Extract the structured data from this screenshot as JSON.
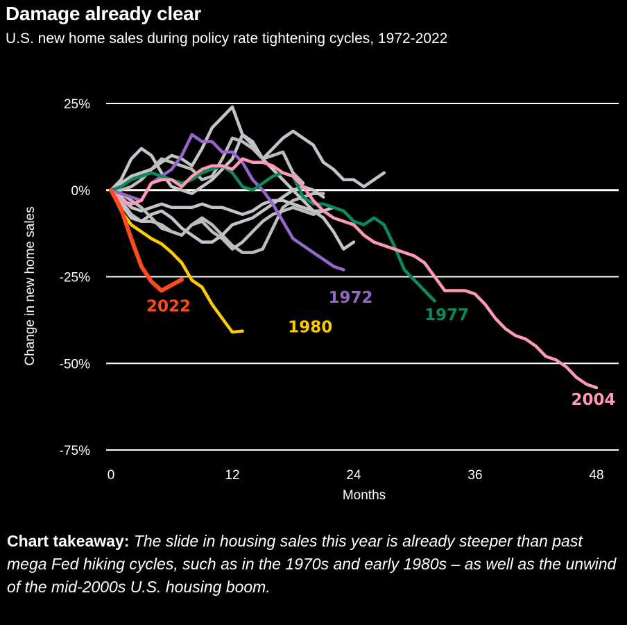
{
  "header": {
    "title": "Damage already clear",
    "subtitle": "U.S. new home sales during policy rate tightening cycles, 1972-2022"
  },
  "takeaway": {
    "label": "Chart takeaway:",
    "text": "The slide in housing sales this year is already steeper than past mega Fed hiking cycles, such as in the 1970s and early 1980s – as well as the unwind of the mid-2000s U.S. housing boom."
  },
  "chart_data": {
    "type": "line",
    "title": "Damage already clear",
    "subtitle": "U.S. new home sales during policy rate tightening cycles, 1972-2022",
    "xlabel": "Months",
    "ylabel": "Change in new home sales",
    "xlim": [
      0,
      48
    ],
    "ylim": [
      -75,
      25
    ],
    "xticks": [
      0,
      12,
      24,
      36,
      48
    ],
    "xtick_labels": [
      "0",
      "12",
      "24",
      "36",
      "48"
    ],
    "yticks": [
      25,
      0,
      -25,
      -50,
      -75
    ],
    "ytick_labels": [
      "25%",
      "0%",
      "-25%",
      "-50%",
      "-75%"
    ],
    "grid": "horizontal",
    "legend": "direct-labels",
    "series": [
      {
        "name": "gray-a",
        "label": "",
        "color": "#c4c4cc",
        "highlight": false,
        "values": [
          0,
          3,
          9,
          12,
          10,
          5,
          1,
          0,
          -1,
          1,
          3,
          6,
          9,
          16,
          14,
          9,
          12,
          15,
          17,
          15,
          13,
          8,
          6,
          3,
          3,
          1,
          3,
          5
        ]
      },
      {
        "name": "gray-b",
        "label": "",
        "color": "#c4c4cc",
        "highlight": false,
        "values": [
          0,
          2,
          4,
          5,
          6,
          8,
          10,
          9,
          7,
          12,
          18,
          21,
          24,
          16,
          13,
          9,
          6,
          3,
          0,
          -3,
          -6,
          -8,
          -12,
          -17,
          -15
        ]
      },
      {
        "name": "gray-c",
        "label": "",
        "color": "#bdbdbd",
        "highlight": false,
        "values": [
          0,
          0,
          1,
          3,
          6,
          9,
          8,
          7,
          6,
          3,
          4,
          9,
          15,
          14,
          12,
          9,
          10,
          11,
          5,
          2
        ]
      },
      {
        "name": "gray-d",
        "label": "",
        "color": "#c4c4cc",
        "highlight": false,
        "values": [
          0,
          -2,
          -5,
          -6,
          -5,
          -4,
          -5,
          -5,
          -5,
          -4,
          -5,
          -5,
          -6,
          -7,
          -6,
          -4,
          -3,
          -3,
          -4,
          -5,
          -6,
          -6,
          -5
        ]
      },
      {
        "name": "gray-e",
        "label": "",
        "color": "#bdbdbd",
        "highlight": false,
        "values": [
          0,
          -3,
          -7,
          -9,
          -9,
          -10,
          -12,
          -13,
          -10,
          -8,
          -10,
          -13,
          -16,
          -18,
          -18,
          -17,
          -11,
          -5,
          -3,
          -2,
          -1,
          -1
        ]
      },
      {
        "name": "gray-f",
        "label": "",
        "color": "#c4c4cc",
        "highlight": false,
        "values": [
          0,
          -4,
          -8,
          -9,
          -7,
          -6,
          -8,
          -11,
          -13,
          -15,
          -15,
          -13,
          -10,
          -9,
          -8,
          -6,
          -4,
          -2,
          0,
          1,
          0,
          -2
        ]
      },
      {
        "name": "gray-g",
        "label": "",
        "color": "#bdbdbd",
        "highlight": false,
        "values": [
          0,
          -1,
          -3,
          -5,
          -8,
          -11,
          -12,
          -13,
          -10,
          -9,
          -12,
          -14,
          -17,
          -15,
          -12,
          -9,
          -7,
          -6,
          -5,
          -6,
          -7,
          -6
        ]
      },
      {
        "name": "1972",
        "label": "1972",
        "color": "#9467c9",
        "highlight": true,
        "values": [
          0,
          -1,
          -2,
          -3,
          2,
          4,
          6,
          10,
          16,
          14,
          14,
          11,
          11,
          8,
          3,
          0,
          -4,
          -9,
          -14,
          -16,
          -18,
          -20,
          -22,
          -23
        ]
      },
      {
        "name": "1977",
        "label": "1977",
        "color": "#0b8a5a",
        "highlight": true,
        "values": [
          0,
          1,
          3,
          4,
          5,
          4,
          3,
          2,
          3,
          5,
          6,
          7,
          5,
          1,
          0,
          2,
          4,
          5,
          4,
          -2,
          -4,
          -4,
          -5,
          -6,
          -9,
          -10,
          -8,
          -10,
          -16,
          -23,
          -26,
          -29,
          -32
        ]
      },
      {
        "name": "1980",
        "label": "1980",
        "color": "#ffcc00",
        "highlight": true,
        "values": [
          0,
          -6,
          -10,
          -12,
          -14,
          -15.5,
          -18,
          -21,
          -26,
          -28,
          -33,
          -37,
          -41,
          -40.7
        ]
      },
      {
        "name": "2004",
        "label": "2004",
        "color": "#ff99b4",
        "highlight": true,
        "values": [
          0,
          -3,
          -4,
          -3,
          2,
          3,
          3,
          1,
          4,
          6,
          7,
          7,
          6,
          9,
          8,
          8,
          7,
          5,
          4,
          1,
          -3,
          -6,
          -8,
          -9,
          -10,
          -13,
          -15,
          -16,
          -17,
          -18,
          -19,
          -21,
          -25,
          -29,
          -29,
          -29,
          -30,
          -33,
          -37,
          -40,
          -42,
          -43,
          -45,
          -48,
          -49,
          -51,
          -54,
          -56,
          -57
        ]
      },
      {
        "name": "2022",
        "label": "2022",
        "color": "#ff4a1c",
        "highlight": true,
        "values": [
          0,
          -5.4,
          -14,
          -22,
          -26.4,
          -29,
          -27.4,
          -25.8
        ]
      }
    ],
    "annotations": [
      {
        "text": "2022",
        "series": "2022",
        "x": 3.5,
        "y": -35
      },
      {
        "text": "1980",
        "series": "1980",
        "x": 17.5,
        "y": -41
      },
      {
        "text": "1972",
        "series": "1972",
        "x": 21.5,
        "y": -32.5
      },
      {
        "text": "1977",
        "series": "1977",
        "x": 31,
        "y": -37.5
      },
      {
        "text": "2004",
        "series": "2004",
        "x": 45.5,
        "y": -62
      }
    ]
  }
}
